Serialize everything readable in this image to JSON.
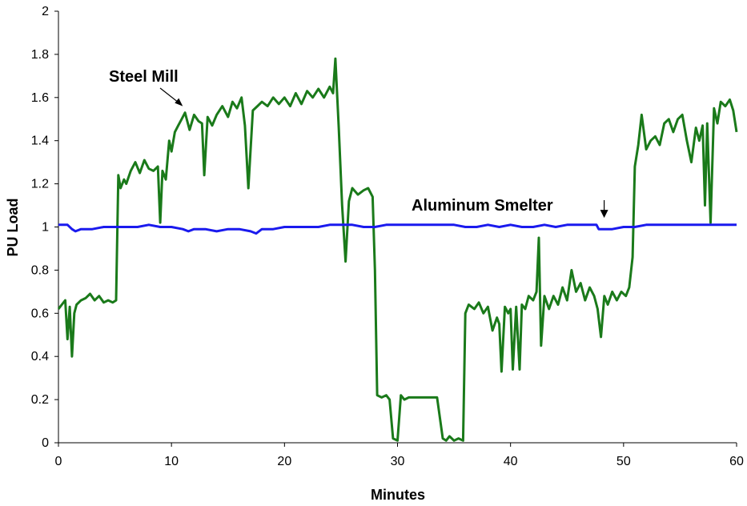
{
  "chart_data": {
    "type": "line",
    "title": "",
    "xlabel": "Minutes",
    "ylabel": "PU Load",
    "xlim": [
      0,
      60
    ],
    "ylim": [
      0,
      2
    ],
    "x_ticks": [
      "0",
      "10",
      "20",
      "30",
      "40",
      "50",
      "60"
    ],
    "y_ticks": [
      "0",
      "0.2",
      "0.4",
      "0.6",
      "0.8",
      "1",
      "1.2",
      "1.4",
      "1.6",
      "1.8",
      "2"
    ],
    "grid": false,
    "legend": "none",
    "series": [
      {
        "name": "Steel Mill",
        "color": "#1a7a1a",
        "x": [
          0,
          0.3,
          0.6,
          0.8,
          1.0,
          1.2,
          1.4,
          1.6,
          2.0,
          2.4,
          2.8,
          3.2,
          3.6,
          4.0,
          4.4,
          4.8,
          5.1,
          5.3,
          5.5,
          5.8,
          6.0,
          6.4,
          6.8,
          7.2,
          7.6,
          8.0,
          8.4,
          8.8,
          9.0,
          9.2,
          9.5,
          9.8,
          10.0,
          10.3,
          10.6,
          10.9,
          11.2,
          11.6,
          12.0,
          12.4,
          12.7,
          12.9,
          13.2,
          13.6,
          14.0,
          14.5,
          15.0,
          15.4,
          15.8,
          16.2,
          16.5,
          16.8,
          17.2,
          17.6,
          18.0,
          18.5,
          19.0,
          19.5,
          20.0,
          20.5,
          21.0,
          21.5,
          22.0,
          22.5,
          23.0,
          23.5,
          24.0,
          24.3,
          24.5,
          24.8,
          25.1,
          25.4,
          25.7,
          26.0,
          26.5,
          27.0,
          27.4,
          27.8,
          28.0,
          28.2,
          28.6,
          29.0,
          29.3,
          29.6,
          30.0,
          30.3,
          30.6,
          31.0,
          31.5,
          32.0,
          32.5,
          33.0,
          33.5,
          34.0,
          34.3,
          34.6,
          35.0,
          35.4,
          35.8,
          36.0,
          36.3,
          36.8,
          37.2,
          37.6,
          38.0,
          38.4,
          38.8,
          39.0,
          39.2,
          39.5,
          39.8,
          40.0,
          40.2,
          40.5,
          40.8,
          41.0,
          41.3,
          41.6,
          42.0,
          42.3,
          42.5,
          42.7,
          43.0,
          43.4,
          43.8,
          44.2,
          44.6,
          45.0,
          45.4,
          45.8,
          46.2,
          46.6,
          47.0,
          47.4,
          47.7,
          48.0,
          48.3,
          48.6,
          49.0,
          49.4,
          49.8,
          50.2,
          50.5,
          50.8,
          51.0,
          51.3,
          51.6,
          52.0,
          52.4,
          52.8,
          53.2,
          53.6,
          54.0,
          54.4,
          54.8,
          55.2,
          55.6,
          56.0,
          56.4,
          56.7,
          57.0,
          57.2,
          57.4,
          57.7,
          58.0,
          58.3,
          58.6,
          59.0,
          59.4,
          59.7,
          60.0
        ],
        "y": [
          0.62,
          0.64,
          0.66,
          0.48,
          0.63,
          0.4,
          0.6,
          0.64,
          0.66,
          0.67,
          0.69,
          0.66,
          0.68,
          0.65,
          0.66,
          0.65,
          0.66,
          1.24,
          1.18,
          1.22,
          1.2,
          1.26,
          1.3,
          1.25,
          1.31,
          1.27,
          1.26,
          1.28,
          1.02,
          1.26,
          1.22,
          1.4,
          1.35,
          1.44,
          1.47,
          1.5,
          1.53,
          1.45,
          1.52,
          1.49,
          1.48,
          1.24,
          1.51,
          1.47,
          1.52,
          1.56,
          1.51,
          1.58,
          1.55,
          1.6,
          1.47,
          1.18,
          1.54,
          1.56,
          1.58,
          1.56,
          1.6,
          1.57,
          1.6,
          1.56,
          1.62,
          1.57,
          1.63,
          1.6,
          1.64,
          1.6,
          1.65,
          1.62,
          1.78,
          1.46,
          1.1,
          0.84,
          1.12,
          1.18,
          1.15,
          1.17,
          1.18,
          1.14,
          0.8,
          0.22,
          0.21,
          0.22,
          0.2,
          0.02,
          0.01,
          0.22,
          0.2,
          0.21,
          0.21,
          0.21,
          0.21,
          0.21,
          0.21,
          0.02,
          0.01,
          0.03,
          0.01,
          0.02,
          0.01,
          0.6,
          0.64,
          0.62,
          0.65,
          0.6,
          0.63,
          0.52,
          0.58,
          0.55,
          0.33,
          0.63,
          0.6,
          0.62,
          0.34,
          0.63,
          0.34,
          0.64,
          0.62,
          0.68,
          0.66,
          0.7,
          0.95,
          0.45,
          0.68,
          0.62,
          0.68,
          0.64,
          0.72,
          0.66,
          0.8,
          0.7,
          0.74,
          0.66,
          0.72,
          0.68,
          0.62,
          0.49,
          0.68,
          0.64,
          0.7,
          0.66,
          0.7,
          0.68,
          0.72,
          0.86,
          1.28,
          1.38,
          1.52,
          1.36,
          1.4,
          1.42,
          1.38,
          1.48,
          1.5,
          1.44,
          1.5,
          1.52,
          1.4,
          1.3,
          1.46,
          1.4,
          1.47,
          1.1,
          1.48,
          1.02,
          1.55,
          1.48,
          1.58,
          1.56,
          1.59,
          1.54,
          1.44
        ]
      },
      {
        "name": "Aluminum Smelter",
        "color": "#1a1aee",
        "x": [
          0,
          0.8,
          1.2,
          1.5,
          2.0,
          3.0,
          4.0,
          5.0,
          6.0,
          7.0,
          8.0,
          9.0,
          10.0,
          11.0,
          11.5,
          12.0,
          13.0,
          14.0,
          15.0,
          16.0,
          17.0,
          17.5,
          18.0,
          19.0,
          20.0,
          21.0,
          22.0,
          23.0,
          24.0,
          25.0,
          26.0,
          27.0,
          28.0,
          29.0,
          30.0,
          31.0,
          32.0,
          33.0,
          34.0,
          35.0,
          36.0,
          37.0,
          38.0,
          39.0,
          40.0,
          41.0,
          42.0,
          43.0,
          44.0,
          45.0,
          46.0,
          47.0,
          47.6,
          47.8,
          48.2,
          49.0,
          50.0,
          51.0,
          52.0,
          53.0,
          54.0,
          55.0,
          56.0,
          57.0,
          58.0,
          59.0,
          60.0
        ],
        "y": [
          1.01,
          1.01,
          0.99,
          0.98,
          0.99,
          0.99,
          1.0,
          1.0,
          1.0,
          1.0,
          1.01,
          1.0,
          1.0,
          0.99,
          0.98,
          0.99,
          0.99,
          0.98,
          0.99,
          0.99,
          0.98,
          0.97,
          0.99,
          0.99,
          1.0,
          1.0,
          1.0,
          1.0,
          1.01,
          1.01,
          1.01,
          1.0,
          1.0,
          1.01,
          1.01,
          1.01,
          1.01,
          1.01,
          1.01,
          1.01,
          1.0,
          1.0,
          1.01,
          1.0,
          1.01,
          1.0,
          1.0,
          1.01,
          1.0,
          1.01,
          1.01,
          1.01,
          1.01,
          0.99,
          0.99,
          0.99,
          1.0,
          1.0,
          1.01,
          1.01,
          1.01,
          1.01,
          1.01,
          1.01,
          1.01,
          1.01,
          1.01
        ]
      }
    ],
    "annotations": [
      {
        "text": "Steel Mill",
        "at_x": 11.0,
        "at_y": 1.53
      },
      {
        "text": "Aluminum Smelter",
        "at_x": 48.0,
        "at_y": 1.02
      }
    ]
  }
}
